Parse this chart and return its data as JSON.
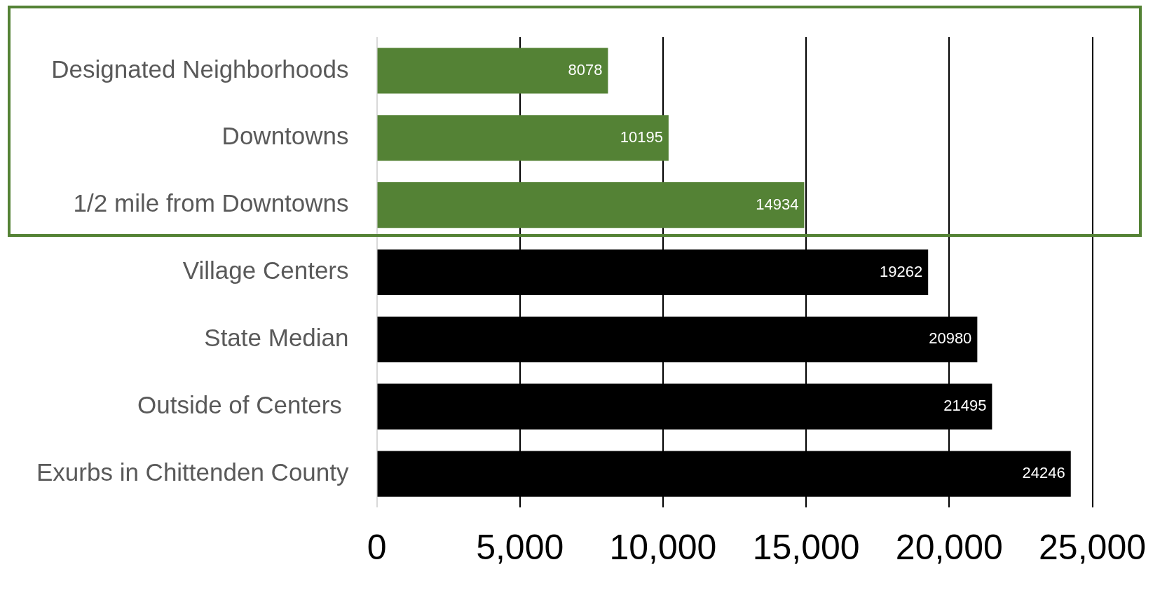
{
  "chart_data": {
    "type": "bar",
    "orientation": "horizontal",
    "categories": [
      "Designated Neighborhoods",
      "Downtowns",
      "1/2 mile from Downtowns",
      "Village Centers",
      "State Median",
      "Outside of Centers ",
      "Exurbs in Chittenden County"
    ],
    "values": [
      8078,
      10195,
      14934,
      19262,
      20980,
      21495,
      24246
    ],
    "colors": [
      "#548235",
      "#548235",
      "#548235",
      "#000000",
      "#000000",
      "#000000",
      "#000000"
    ],
    "xlim": [
      0,
      25000
    ],
    "xticks": [
      {
        "value": 0,
        "label": "0"
      },
      {
        "value": 5000,
        "label": "5,000"
      },
      {
        "value": 10000,
        "label": "10,000"
      },
      {
        "value": 15000,
        "label": "15,000"
      },
      {
        "value": 20000,
        "label": "20,000"
      },
      {
        "value": 25000,
        "label": "25,000"
      }
    ],
    "grid": "x",
    "data_labels": true,
    "legend": false
  }
}
